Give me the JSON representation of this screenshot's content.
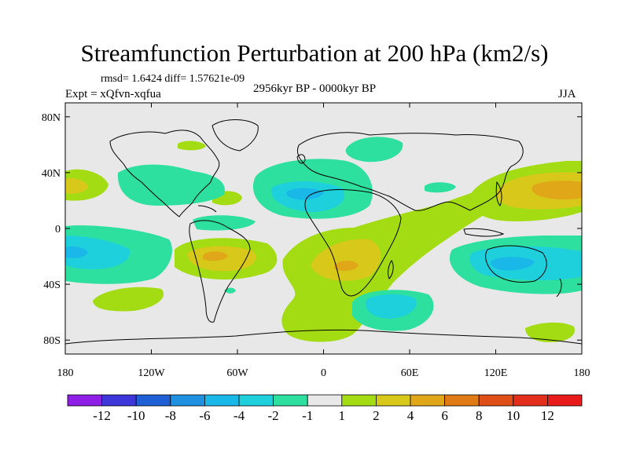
{
  "title": "Streamfunction Perturbation at 200 hPa (km2/s)",
  "meta": {
    "rmsd": "rmsd= 1.6424 diff= 1.57621e-09",
    "experiment": "Expt = xQfvn-xqfua",
    "period": "2956kyr BP - 0000kyr BP",
    "season": "JJA"
  },
  "axes": {
    "x_ticks": [
      "180",
      "120W",
      "60W",
      "0",
      "60E",
      "120E",
      "180"
    ],
    "y_ticks": [
      "80N",
      "40N",
      "0",
      "40S",
      "80S"
    ]
  },
  "colorbar": {
    "labels": [
      "-12",
      "-10",
      "-8",
      "-6",
      "-4",
      "-2",
      "-1",
      "1",
      "2",
      "4",
      "6",
      "8",
      "10",
      "12"
    ],
    "colors": [
      "#8f1fe6",
      "#3d36d9",
      "#1f5fd6",
      "#1f8fe0",
      "#19b8e8",
      "#1ed0dc",
      "#2ee0a0",
      "#e8e8e8",
      "#a4dc14",
      "#d8c81a",
      "#e0a818",
      "#e07a14",
      "#e04e18",
      "#e42e1c",
      "#e81a1a"
    ]
  },
  "field_colors": {
    "neutral": "#e8e8e8",
    "pos1": "#a4dc14",
    "pos2": "#d8c81a",
    "pos3": "#e0a818",
    "neg1": "#2ee0a0",
    "neg2": "#1ed0dc",
    "neg3": "#19b8e8"
  }
}
